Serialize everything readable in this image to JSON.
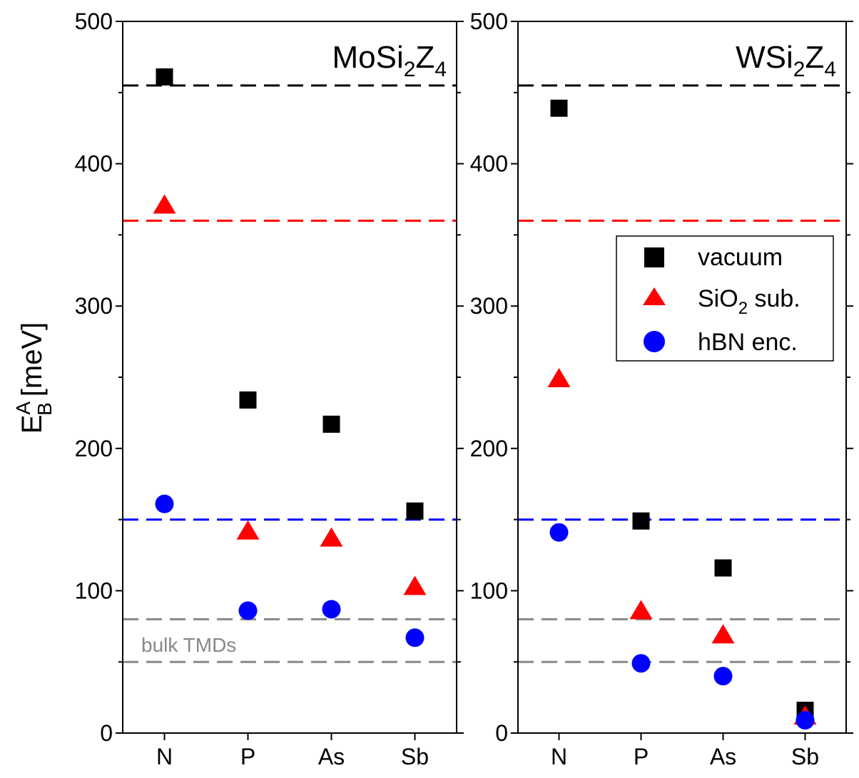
{
  "chart_data": [
    {
      "type": "scatter",
      "title": "MoSi2Z4",
      "title_main": "MoSi",
      "title_sub1": "2",
      "title_mid": "Z",
      "title_sub2": "4",
      "ylabel_main": "E",
      "ylabel_sup": "A",
      "ylabel_sub": "B",
      "ylabel_unit": "[meV]",
      "ylim": [
        0,
        500
      ],
      "yticks": [
        "0",
        "100",
        "200",
        "300",
        "400",
        "500"
      ],
      "categories": [
        "N",
        "P",
        "As",
        "Sb"
      ],
      "series": [
        {
          "name": "vacuum",
          "marker": "square",
          "color": "#000000",
          "values": [
            461,
            234,
            217,
            156
          ]
        },
        {
          "name": "SiO2 sub.",
          "marker": "triangle",
          "color": "#ff0000",
          "values": [
            371,
            142,
            137,
            103
          ]
        },
        {
          "name": "hBN enc.",
          "marker": "circle",
          "color": "#0000ff",
          "values": [
            161,
            86,
            87,
            67
          ]
        }
      ],
      "hlines": [
        {
          "value": 455,
          "color": "#000000"
        },
        {
          "value": 360,
          "color": "#ff0000"
        },
        {
          "value": 150,
          "color": "#0000ff"
        },
        {
          "value": 80,
          "color": "#888888"
        },
        {
          "value": 50,
          "color": "#888888"
        }
      ],
      "annotation": "bulk TMDs"
    },
    {
      "type": "scatter",
      "title": "WSi2Z4",
      "title_main": "WSi",
      "title_sub1": "2",
      "title_mid": "Z",
      "title_sub2": "4",
      "ylim": [
        0,
        500
      ],
      "yticks": [
        "0",
        "100",
        "200",
        "300",
        "400",
        "500"
      ],
      "categories": [
        "N",
        "P",
        "As",
        "Sb"
      ],
      "series": [
        {
          "name": "vacuum",
          "marker": "square",
          "color": "#000000",
          "values": [
            439,
            149,
            116,
            16
          ]
        },
        {
          "name": "SiO2 sub.",
          "marker": "triangle",
          "color": "#ff0000",
          "values": [
            249,
            86,
            69,
            12
          ]
        },
        {
          "name": "hBN enc.",
          "marker": "circle",
          "color": "#0000ff",
          "values": [
            141,
            49,
            40,
            9
          ]
        }
      ],
      "hlines": [
        {
          "value": 455,
          "color": "#000000"
        },
        {
          "value": 360,
          "color": "#ff0000"
        },
        {
          "value": 150,
          "color": "#0000ff"
        },
        {
          "value": 80,
          "color": "#888888"
        },
        {
          "value": 50,
          "color": "#888888"
        }
      ],
      "legend": {
        "position": "upper-right",
        "entries": [
          {
            "label_main": "vacuum",
            "label_sub": "",
            "label_rest": ""
          },
          {
            "label_main": "SiO",
            "label_sub": "2",
            "label_rest": " sub."
          },
          {
            "label_main": "hBN enc.",
            "label_sub": "",
            "label_rest": ""
          }
        ]
      }
    }
  ]
}
